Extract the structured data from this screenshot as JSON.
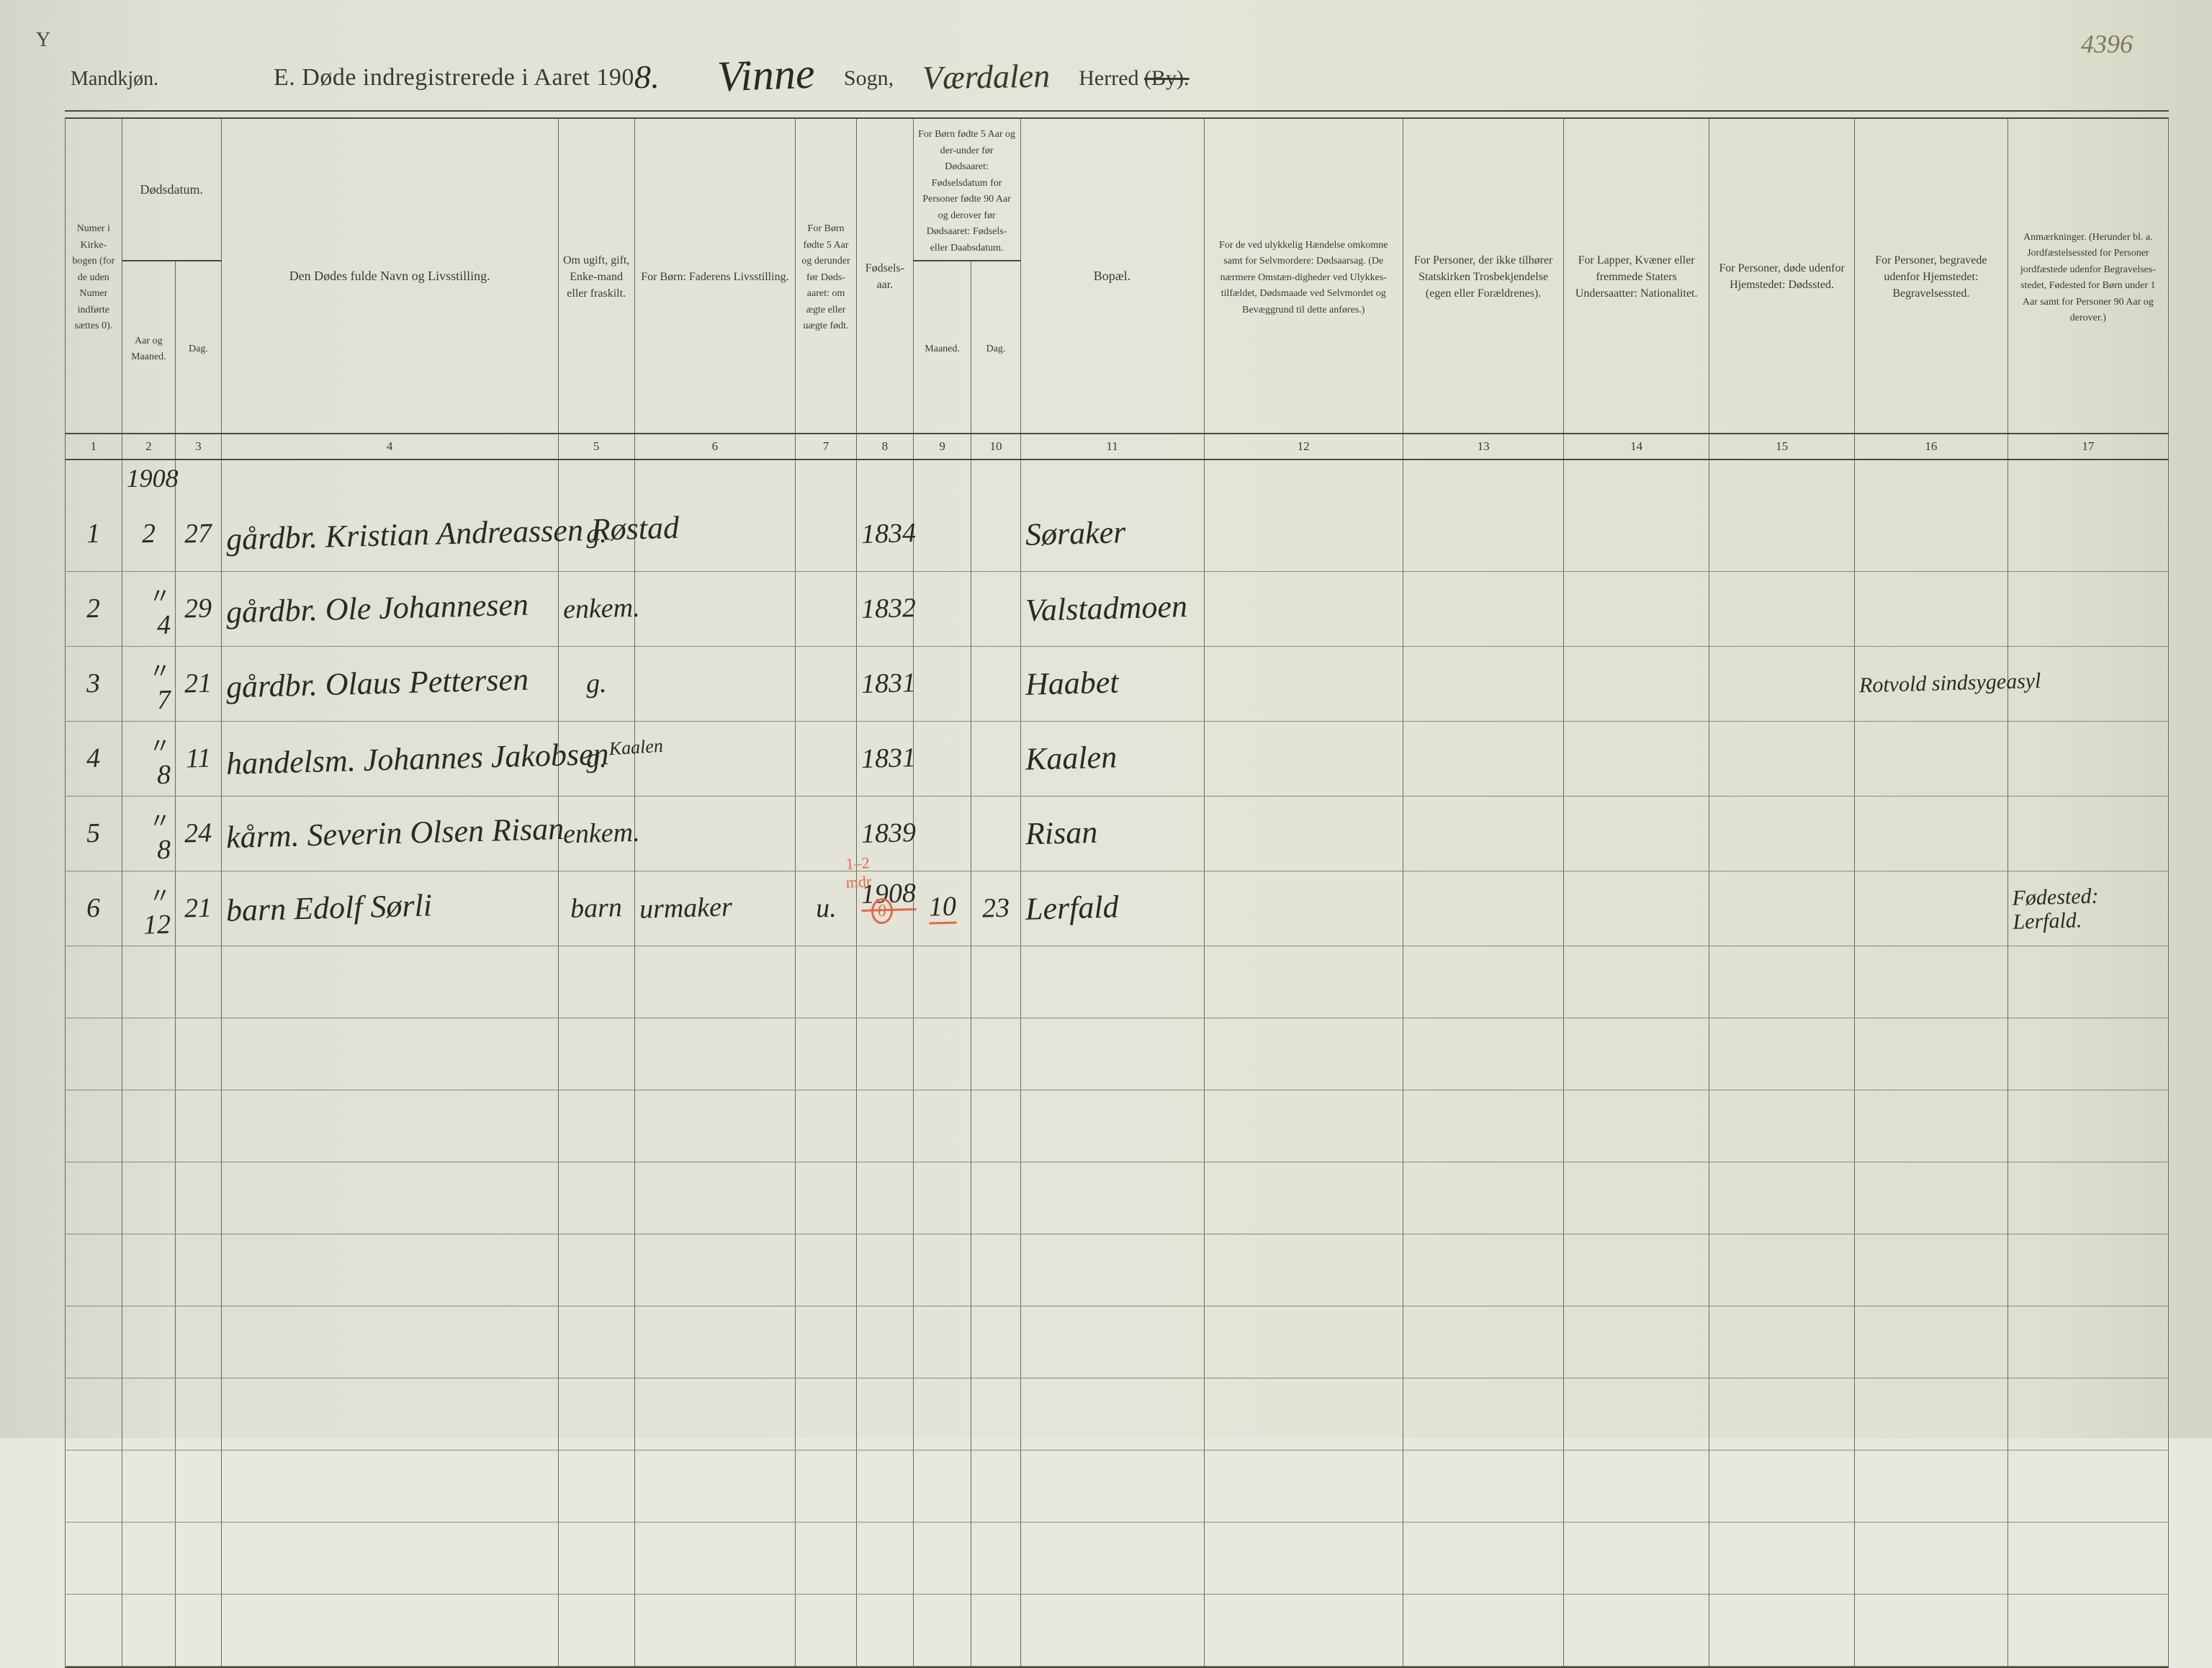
{
  "page": {
    "background_color": "#e0e0d4",
    "line_color": "#6a6a58",
    "heavy_line_color": "#4a4a3a",
    "header_text_color": "#3a3a30",
    "hand_color": "#2a2a20",
    "red_color": "#e06a4a",
    "corner_top_left": "Y",
    "corner_top_right": "4396"
  },
  "header": {
    "gender_label": "Mandkjøn.",
    "title_prefix": "E.   Døde indregistrerede i Aaret 190",
    "year_digit": "8.",
    "sogn_hand": "Vinne",
    "sogn_label": "Sogn,",
    "herred_hand": "Værdalen",
    "herred_label": "Herred ",
    "herred_struck": "(By)."
  },
  "columns": {
    "c1": {
      "num": "1",
      "label": "Numer i Kirke-bogen (for de uden Numer indførte sættes 0)."
    },
    "c2_3_group": "Dødsdatum.",
    "c2": {
      "num": "2",
      "label": "Aar og Maaned."
    },
    "c3": {
      "num": "3",
      "label": "Dag."
    },
    "c4": {
      "num": "4",
      "label": "Den Dødes fulde Navn og Livsstilling."
    },
    "c5": {
      "num": "5",
      "label": "Om ugift, gift, Enke-mand eller fraskilt."
    },
    "c6": {
      "num": "6",
      "label": "For Børn:\nFaderens Livsstilling."
    },
    "c7": {
      "num": "7",
      "label": "For Børn fødte 5 Aar og derunder før Døds-aaret: om ægte eller uægte født."
    },
    "c8": {
      "num": "8",
      "label": "Fødsels-aar."
    },
    "c9_10_group": "For Børn fødte 5 Aar og der-under før Dødsaaret: Fødselsdatum for Personer fødte 90 Aar og derover før Dødsaaret: Fødsels- eller Daabsdatum.",
    "c9": {
      "num": "9",
      "label": "Maaned."
    },
    "c10": {
      "num": "10",
      "label": "Dag."
    },
    "c11": {
      "num": "11",
      "label": "Bopæl."
    },
    "c12": {
      "num": "12",
      "label": "For de ved ulykkelig Hændelse omkomne samt for Selvmordere: Dødsaarsag.\n(De nærmere Omstæn-digheder ved Ulykkes-tilfældet, Dødsmaade ved Selvmordet og Bevæggrund til dette anføres.)"
    },
    "c13": {
      "num": "13",
      "label": "For Personer, der ikke tilhører Statskirken\nTrosbekjendelse\n(egen eller Forældrenes)."
    },
    "c14": {
      "num": "14",
      "label": "For Lapper, Kvæner eller fremmede Staters Undersaatter: Nationalitet."
    },
    "c15": {
      "num": "15",
      "label": "For Personer, døde udenfor Hjemstedet: Dødssted."
    },
    "c16": {
      "num": "16",
      "label": "For Personer, begravede udenfor Hjemstedet: Begravelsessted."
    },
    "c17": {
      "num": "17",
      "label": "Anmærkninger.\n(Herunder bl. a. Jordfæstelsessted for Personer jordfæstede udenfor Begravelses-stedet, Fødested for Børn under 1 Aar samt for Personer 90 Aar og derover.)"
    }
  },
  "year_row": "1908",
  "rows": [
    {
      "num": "1",
      "month": "2",
      "day": "27",
      "name": "gårdbr. Kristian Andreassen Røstad",
      "civil": "g.",
      "father": "",
      "legit": "",
      "byear": "1834",
      "bmon": "",
      "bday": "",
      "bopel": "Søraker",
      "c12": "",
      "c13": "",
      "c14": "",
      "c15": "",
      "c16": "",
      "c17": ""
    },
    {
      "num": "2",
      "month": "〃\n4",
      "day": "29",
      "name": "gårdbr. Ole Johannesen",
      "civil": "enkem.",
      "father": "",
      "legit": "",
      "byear": "1832",
      "bmon": "",
      "bday": "",
      "bopel": "Valstadmoen",
      "c12": "",
      "c13": "",
      "c14": "",
      "c15": "",
      "c16": "",
      "c17": ""
    },
    {
      "num": "3",
      "month": "〃\n7",
      "day": "21",
      "name": "gårdbr. Olaus Pettersen",
      "civil": "g.",
      "father": "",
      "legit": "",
      "byear": "1831",
      "bmon": "",
      "bday": "",
      "bopel": "Haabet",
      "c12": "",
      "c13": "",
      "c14": "",
      "c15": "",
      "c16": "Rotvold sindsygeasyl",
      "c17": ""
    },
    {
      "num": "4",
      "month": "〃\n8",
      "day": "11",
      "name": "handelsm. Johannes Jakobsen",
      "name_super": "Kaalen",
      "civil": "g.",
      "father": "",
      "legit": "",
      "byear": "1831",
      "bmon": "",
      "bday": "",
      "bopel": "Kaalen",
      "c12": "",
      "c13": "",
      "c14": "",
      "c15": "",
      "c16": "",
      "c17": ""
    },
    {
      "num": "5",
      "month": "〃\n8",
      "day": "24",
      "name": "kårm. Severin Olsen Risan",
      "civil": "enkem.",
      "father": "",
      "legit": "",
      "byear": "1839",
      "bmon": "",
      "bday": "",
      "bopel": "Risan",
      "c12": "",
      "c13": "",
      "c14": "",
      "c15": "",
      "c16": "",
      "c17": ""
    },
    {
      "num": "6",
      "month": "〃\n12",
      "day": "21",
      "name": "barn Edolf Sørli",
      "civil": "barn",
      "father": "urmaker",
      "legit": "u.",
      "byear": "1908",
      "bmon": "10",
      "bday": "23",
      "bopel": "Lerfald",
      "red_note": "1–2 mdr",
      "red_circle": "0",
      "c12": "",
      "c13": "",
      "c14": "",
      "c15": "",
      "c16": "",
      "c17": "Fødested:\nLerfald."
    }
  ],
  "blank_rows": 10,
  "fonts": {
    "header_fontsize_pt": 24,
    "column_header_fontsize_pt": 13,
    "colnum_fontsize_pt": 12,
    "hand_fontsize_pt": 32
  }
}
